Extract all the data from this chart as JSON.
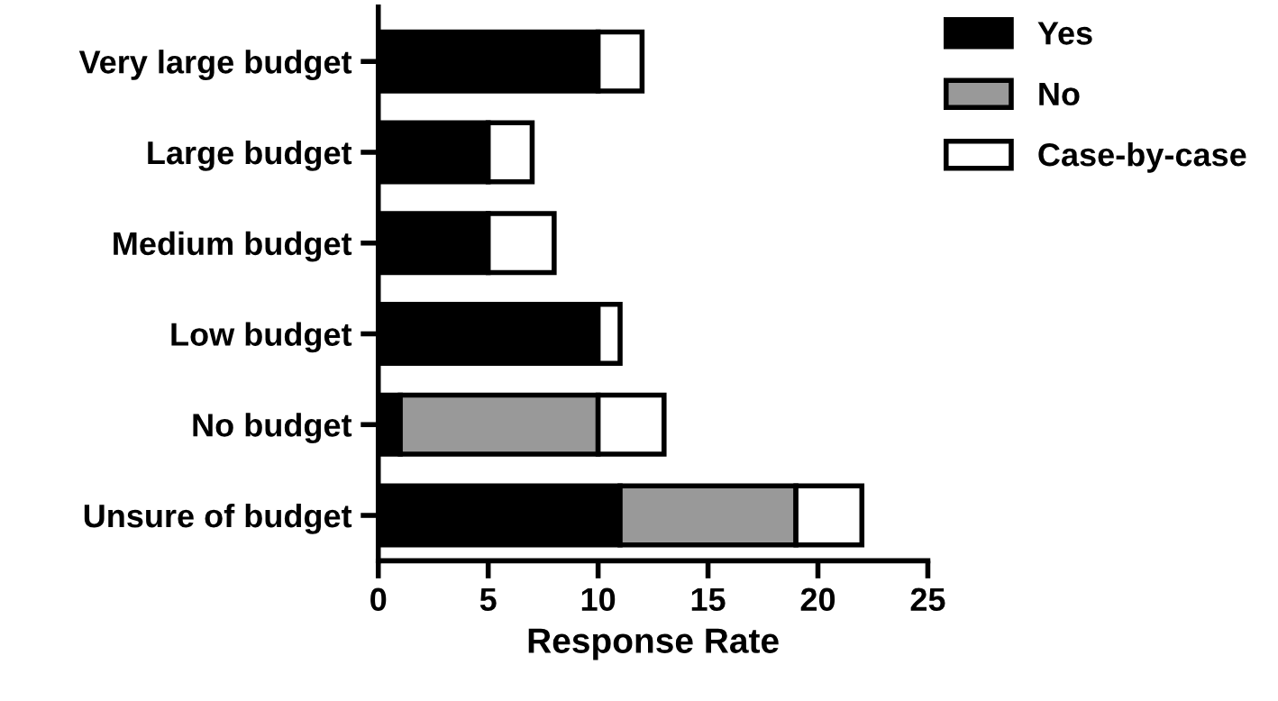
{
  "chart_data": {
    "type": "bar",
    "orientation": "horizontal",
    "stacked": true,
    "xlabel": "Response Rate",
    "categories": [
      "Very large budget",
      "Large budget",
      "Medium budget",
      "Low budget",
      "No budget",
      "Unsure of budget"
    ],
    "series": [
      {
        "name": "Yes",
        "color": "#000000",
        "values": [
          10,
          5,
          5,
          10,
          1,
          11
        ]
      },
      {
        "name": "No",
        "color": "#999999",
        "values": [
          0,
          0,
          0,
          0,
          9,
          8
        ]
      },
      {
        "name": "Case-by-case",
        "color": "#ffffff",
        "values": [
          2,
          2,
          3,
          1,
          3,
          3
        ]
      }
    ],
    "xlim": [
      0,
      25
    ],
    "xticks": [
      0,
      5,
      10,
      15,
      20,
      25
    ],
    "grid": false,
    "legend": "top right"
  }
}
